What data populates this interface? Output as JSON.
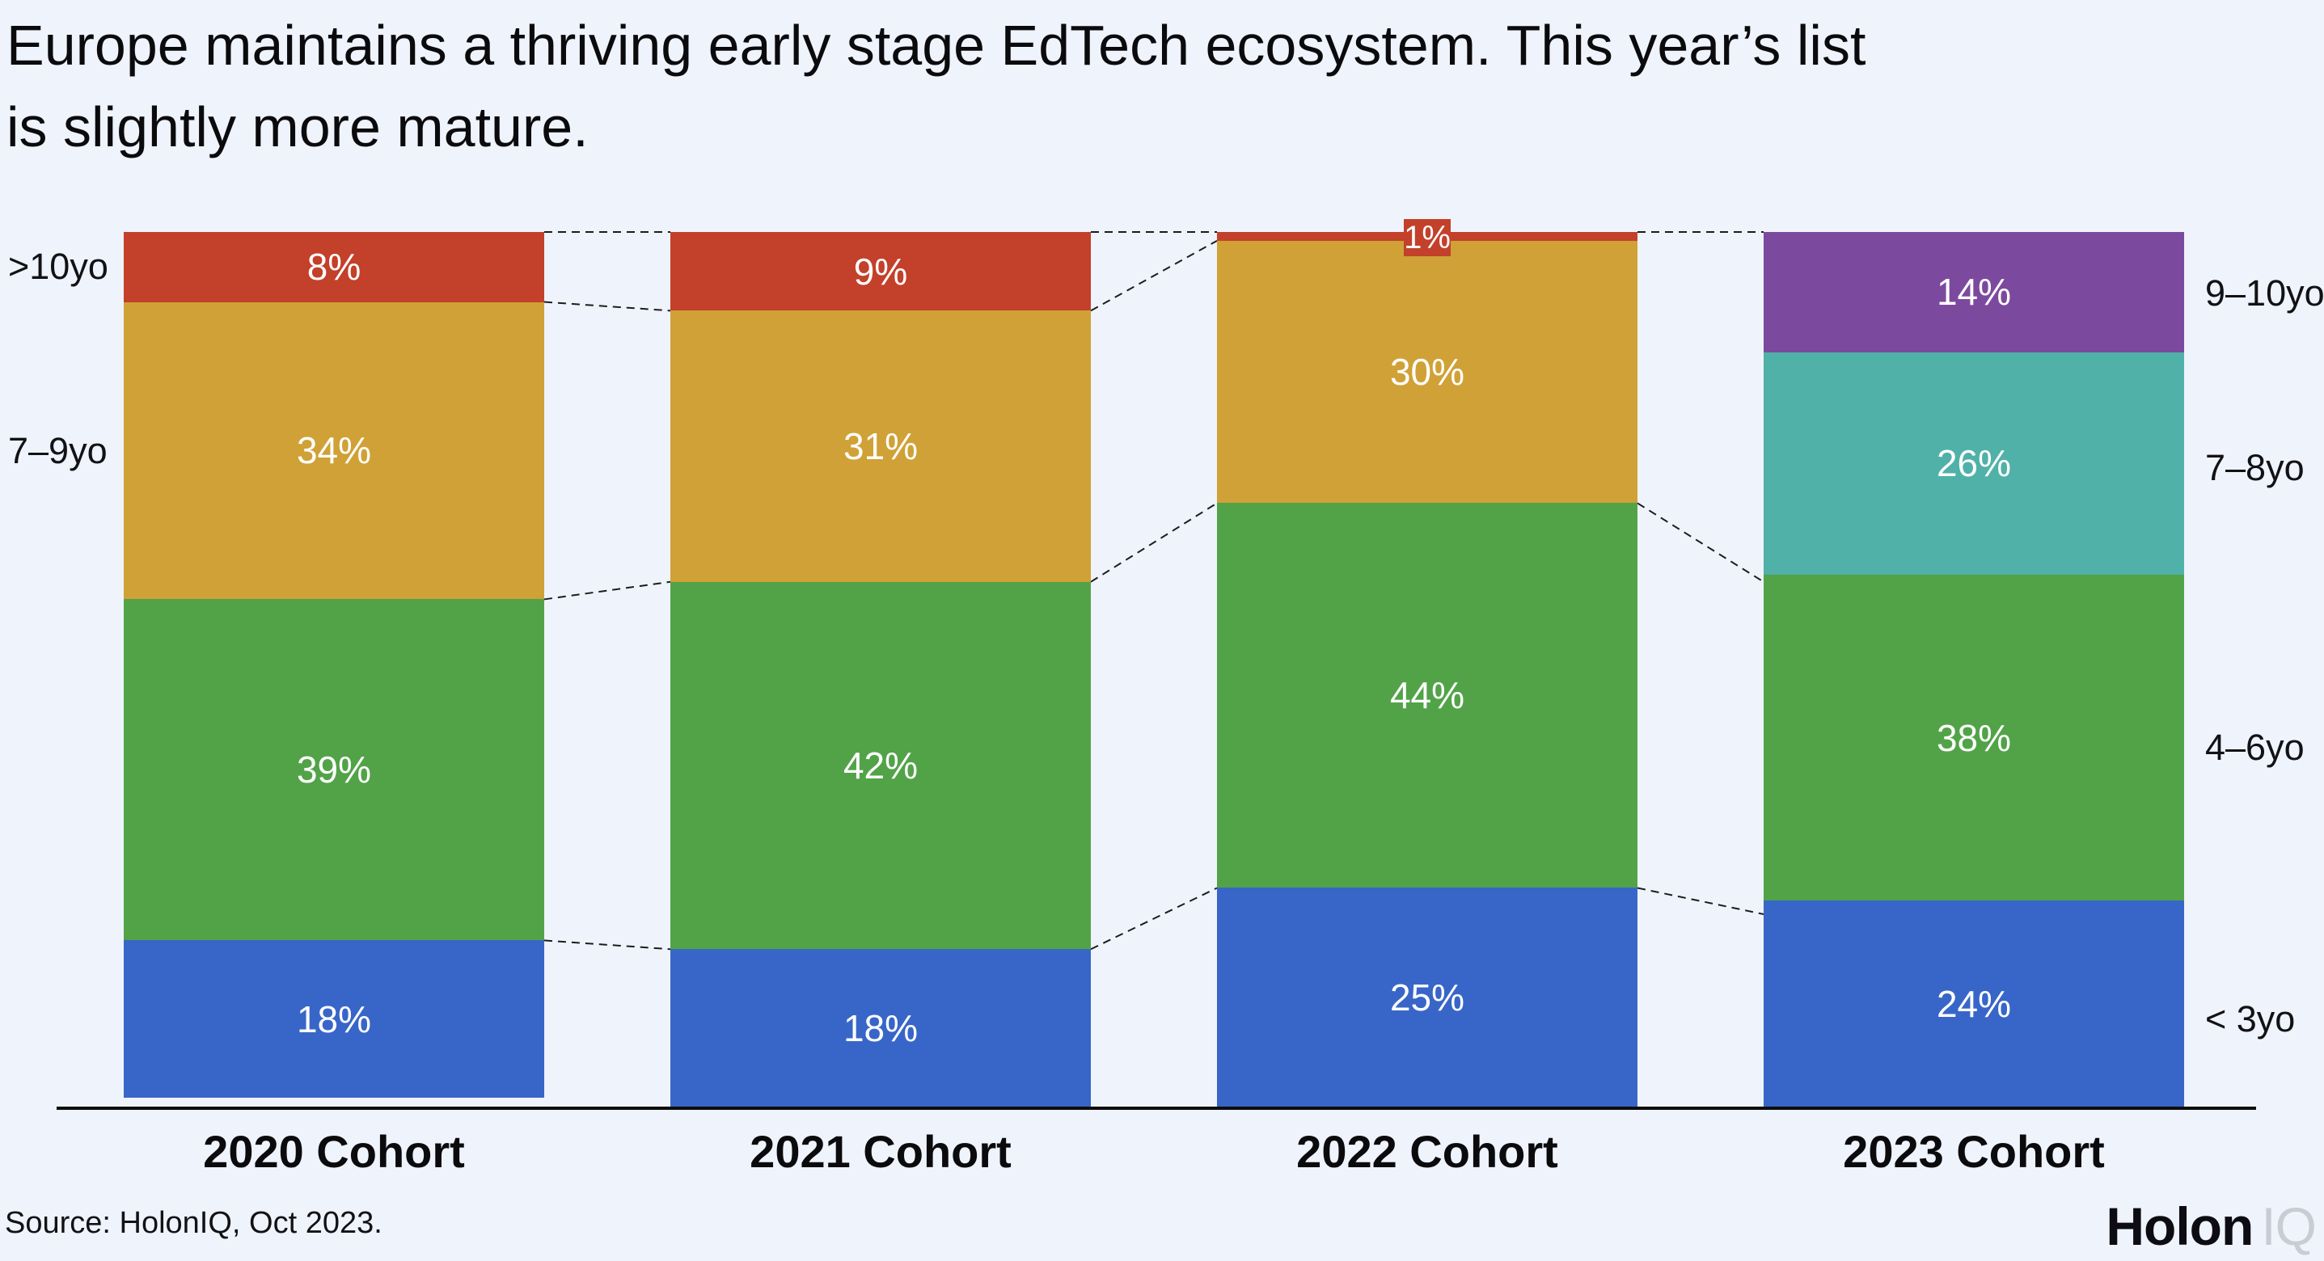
{
  "title_lines": [
    "Europe maintains a thriving early stage EdTech ecosystem. This year’s list",
    "is slightly more mature."
  ],
  "source": "Source: HolonIQ, Oct 2023.",
  "logo": {
    "primary": "Holon",
    "secondary": "IQ"
  },
  "axis": {
    "left_labels": [
      ">10yo",
      "7–9yo"
    ],
    "right_labels": [
      "9–10yo",
      "7–8yo",
      "4–6yo",
      "< 3yo"
    ]
  },
  "chart_data": {
    "type": "bar",
    "stacked": true,
    "value_unit": "%",
    "ymax": 100,
    "grid": false,
    "legend": "none",
    "categories": [
      "2020 Cohort",
      "2021 Cohort",
      "2022 Cohort",
      "2023 Cohort"
    ],
    "cohorts": [
      {
        "label": "2020 Cohort",
        "segments_top_to_bottom": [
          {
            "age_group": ">10yo",
            "value": 8,
            "color": "#c3402a"
          },
          {
            "age_group": "7–9yo",
            "value": 34,
            "color": "#d0a136"
          },
          {
            "age_group": "4–6yo",
            "value": 39,
            "color": "#52a348"
          },
          {
            "age_group": "< 3yo",
            "value": 18,
            "color": "#3866c8"
          }
        ]
      },
      {
        "label": "2021 Cohort",
        "segments_top_to_bottom": [
          {
            "age_group": ">10yo",
            "value": 9,
            "color": "#c3402a"
          },
          {
            "age_group": "7–9yo",
            "value": 31,
            "color": "#d0a136"
          },
          {
            "age_group": "4–6yo",
            "value": 42,
            "color": "#52a348"
          },
          {
            "age_group": "< 3yo",
            "value": 18,
            "color": "#3866c8"
          }
        ]
      },
      {
        "label": "2022 Cohort",
        "segments_top_to_bottom": [
          {
            "age_group": ">10yo",
            "value": 1,
            "color": "#c3402a",
            "callout": true
          },
          {
            "age_group": "7–9yo",
            "value": 30,
            "color": "#d0a136"
          },
          {
            "age_group": "4–6yo",
            "value": 44,
            "color": "#52a348"
          },
          {
            "age_group": "< 3yo",
            "value": 25,
            "color": "#3866c8"
          }
        ]
      },
      {
        "label": "2023 Cohort",
        "segments_top_to_bottom": [
          {
            "age_group": "9–10yo",
            "value": 14,
            "color": "#7b4a9e"
          },
          {
            "age_group": "7–8yo",
            "value": 26,
            "color": "#50b1a8"
          },
          {
            "age_group": "4–6yo",
            "value": 38,
            "color": "#52a348"
          },
          {
            "age_group": "< 3yo",
            "value": 24,
            "color": "#3866c8"
          }
        ]
      }
    ],
    "connectors": [
      {
        "between": [
          0,
          1
        ],
        "pairs": [
          [
            0,
            0
          ],
          [
            8,
            9
          ],
          [
            42,
            40
          ],
          [
            81,
            82
          ]
        ]
      },
      {
        "between": [
          1,
          2
        ],
        "pairs": [
          [
            0,
            0
          ],
          [
            9,
            1
          ],
          [
            40,
            31
          ],
          [
            82,
            75
          ]
        ]
      },
      {
        "between": [
          2,
          3
        ],
        "pairs": [
          [
            0,
            0
          ],
          [
            31,
            40
          ],
          [
            75,
            78
          ]
        ]
      }
    ]
  }
}
